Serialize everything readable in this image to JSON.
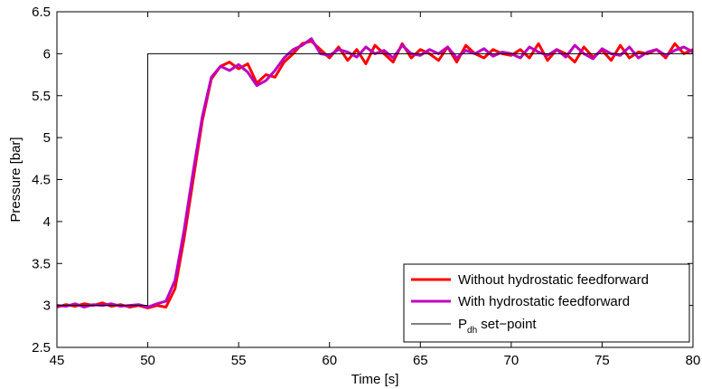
{
  "chart_data": {
    "type": "line",
    "xlabel": "Time [s]",
    "ylabel": "Pressure [bar]",
    "xlim": [
      45,
      80
    ],
    "ylim": [
      2.5,
      6.5
    ],
    "xticks": [
      "45",
      "50",
      "55",
      "60",
      "65",
      "70",
      "75",
      "80"
    ],
    "yticks": [
      "2.5",
      "3",
      "3.5",
      "4",
      "4.5",
      "5",
      "5.5",
      "6",
      "6.5"
    ],
    "grid": false,
    "legend_position": "bottom-right",
    "legend": {
      "without": "Without hydrostatic feedforward",
      "with": "With hydrostatic feedforward",
      "setpoint_main": "P",
      "setpoint_sub": "dh",
      "setpoint_tail": " set−point"
    },
    "series": [
      {
        "name": "Without hydrostatic feedforward",
        "color": "#ff0000",
        "x": [
          45.0,
          45.5,
          46.0,
          46.5,
          47.0,
          47.5,
          48.0,
          48.5,
          49.0,
          49.5,
          50.0,
          50.5,
          51.0,
          51.5,
          52.0,
          52.5,
          53.0,
          53.5,
          54.0,
          54.5,
          55.0,
          55.5,
          56.0,
          56.5,
          57.0,
          57.5,
          58.0,
          58.5,
          59.0,
          59.5,
          60.0,
          60.5,
          61.0,
          61.5,
          62.0,
          62.5,
          63.0,
          63.5,
          64.0,
          64.5,
          65.0,
          65.5,
          66.0,
          66.5,
          67.0,
          67.5,
          68.0,
          68.5,
          69.0,
          69.5,
          70.0,
          70.5,
          71.0,
          71.5,
          72.0,
          72.5,
          73.0,
          73.5,
          74.0,
          74.5,
          75.0,
          75.5,
          76.0,
          76.5,
          77.0,
          77.5,
          78.0,
          78.5,
          79.0,
          79.5,
          80.0
        ],
        "y": [
          2.98,
          3.01,
          2.99,
          3.02,
          3.0,
          3.03,
          2.99,
          3.01,
          2.98,
          3.0,
          2.97,
          3.0,
          2.98,
          3.2,
          3.8,
          4.5,
          5.2,
          5.7,
          5.85,
          5.9,
          5.82,
          5.88,
          5.65,
          5.75,
          5.72,
          5.9,
          6.0,
          6.12,
          6.15,
          6.05,
          5.95,
          6.08,
          5.92,
          6.05,
          5.88,
          6.1,
          6.0,
          5.9,
          6.12,
          5.95,
          6.05,
          6.0,
          5.92,
          6.08,
          5.9,
          6.1,
          6.0,
          5.95,
          6.05,
          6.0,
          5.98,
          6.05,
          5.95,
          6.12,
          5.92,
          6.05,
          6.0,
          5.9,
          6.08,
          5.96,
          6.04,
          5.92,
          6.1,
          5.95,
          6.02,
          6.0,
          6.05,
          5.95,
          6.12,
          6.0,
          6.05
        ]
      },
      {
        "name": "With hydrostatic feedforward",
        "color": "#bf00bf",
        "x": [
          45.0,
          45.5,
          46.0,
          46.5,
          47.0,
          47.5,
          48.0,
          48.5,
          49.0,
          49.5,
          50.0,
          50.5,
          51.0,
          51.5,
          52.0,
          52.5,
          53.0,
          53.5,
          54.0,
          54.5,
          55.0,
          55.5,
          56.0,
          56.5,
          57.0,
          57.5,
          58.0,
          58.5,
          59.0,
          59.5,
          60.0,
          60.5,
          61.0,
          61.5,
          62.0,
          62.5,
          63.0,
          63.5,
          64.0,
          64.5,
          65.0,
          65.5,
          66.0,
          66.5,
          67.0,
          67.5,
          68.0,
          68.5,
          69.0,
          69.5,
          70.0,
          70.5,
          71.0,
          71.5,
          72.0,
          72.5,
          73.0,
          73.5,
          74.0,
          74.5,
          75.0,
          75.5,
          76.0,
          76.5,
          77.0,
          77.5,
          78.0,
          78.5,
          79.0,
          79.5,
          80.0
        ],
        "y": [
          3.0,
          2.99,
          3.02,
          2.98,
          3.01,
          3.0,
          3.02,
          2.99,
          3.0,
          3.01,
          2.98,
          3.02,
          3.05,
          3.3,
          3.9,
          4.6,
          5.25,
          5.72,
          5.85,
          5.8,
          5.87,
          5.78,
          5.62,
          5.68,
          5.8,
          5.95,
          6.05,
          6.1,
          6.18,
          6.0,
          5.98,
          6.05,
          6.02,
          5.96,
          6.08,
          6.0,
          6.04,
          5.95,
          6.1,
          6.0,
          5.98,
          6.05,
          6.0,
          6.08,
          5.95,
          6.04,
          6.0,
          6.06,
          5.97,
          6.02,
          6.0,
          5.95,
          6.08,
          6.02,
          5.98,
          6.05,
          5.96,
          6.1,
          6.0,
          5.94,
          6.06,
          6.0,
          5.98,
          6.08,
          5.95,
          6.02,
          6.05,
          5.98,
          6.04,
          6.08,
          6.02
        ]
      },
      {
        "name": "P_dh set-point",
        "color": "#000000",
        "x": [
          45,
          50,
          50,
          80
        ],
        "y": [
          3.0,
          3.0,
          6.0,
          6.0
        ]
      }
    ]
  }
}
